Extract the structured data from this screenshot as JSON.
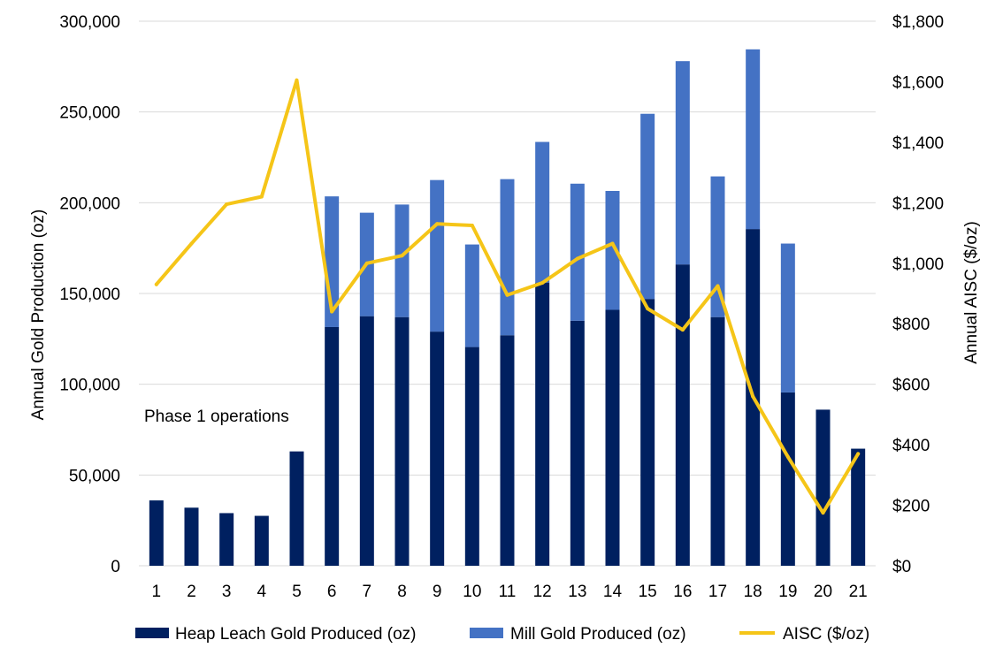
{
  "chart_data": {
    "type": "bar",
    "stacked": true,
    "title": "",
    "categories": [
      "1",
      "2",
      "3",
      "4",
      "5",
      "6",
      "7",
      "8",
      "9",
      "10",
      "11",
      "12",
      "13",
      "14",
      "15",
      "16",
      "17",
      "18",
      "19",
      "20",
      "21"
    ],
    "series": [
      {
        "name": "Heap Leach Gold Produced (oz)",
        "kind": "bar",
        "axis": "left",
        "color": "#002060",
        "values": [
          36000,
          32000,
          29000,
          27500,
          63000,
          131500,
          137500,
          137000,
          129000,
          120500,
          127000,
          156000,
          135000,
          141000,
          147000,
          166000,
          137000,
          185500,
          95500,
          86000,
          64500
        ]
      },
      {
        "name": "Mill Gold Produced (oz)",
        "kind": "bar",
        "axis": "left",
        "color": "#4472c4",
        "values": [
          0,
          0,
          0,
          0,
          0,
          72000,
          57000,
          62000,
          83500,
          56500,
          86000,
          77500,
          75500,
          65500,
          102000,
          112000,
          77500,
          99000,
          82000,
          0,
          0
        ]
      },
      {
        "name": "AISC ($/oz)",
        "kind": "line",
        "axis": "right",
        "color": "#f5c518",
        "values": [
          930,
          1065,
          1195,
          1220,
          1605,
          840,
          1000,
          1025,
          1130,
          1125,
          895,
          935,
          1015,
          1065,
          850,
          780,
          925,
          560,
          360,
          175,
          370
        ]
      }
    ],
    "yleft": {
      "label": "Annual Gold Production (oz)",
      "lim": [
        0,
        300000
      ],
      "ticks": [
        0,
        50000,
        100000,
        150000,
        200000,
        250000,
        300000
      ],
      "tick_labels": [
        "0",
        "50,000",
        "100,000",
        "150,000",
        "200,000",
        "250,000",
        "300,000"
      ]
    },
    "yright": {
      "label": "Annual AISC ($/oz)",
      "lim": [
        0,
        1800
      ],
      "ticks": [
        0,
        200,
        400,
        600,
        800,
        1000,
        1200,
        1400,
        1600,
        1800
      ],
      "tick_labels": [
        "$0",
        "$200",
        "$400",
        "$600",
        "$800",
        "$1,000",
        "$1,200",
        "$1,400",
        "$1,600",
        "$1,800"
      ]
    },
    "xlabel": "",
    "grid": true,
    "legend_position": "bottom",
    "annotation": "Phase 1 operations"
  }
}
